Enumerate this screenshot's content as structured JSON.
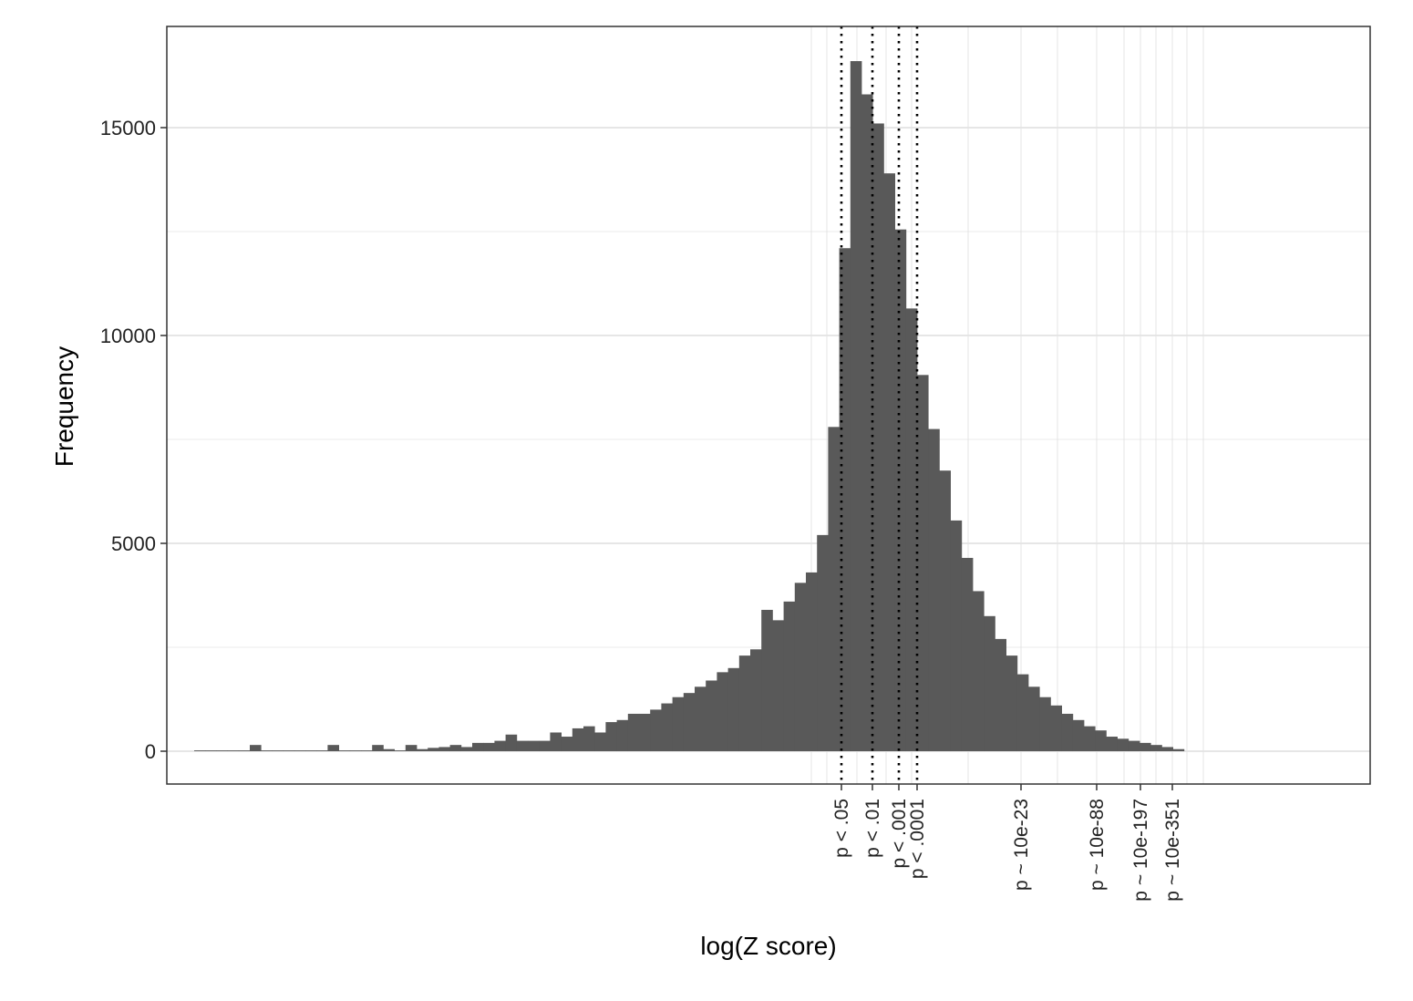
{
  "chart_data": {
    "type": "bar",
    "subtype": "histogram",
    "xlabel": "log(Z score)",
    "ylabel": "Frequency",
    "x_scale": "log",
    "ylim": [
      -800,
      17500
    ],
    "y_ticks": [
      0,
      5000,
      10000,
      15000
    ],
    "y_tick_labels": [
      "0",
      "5000",
      "10000",
      "15000"
    ],
    "grid": true,
    "bar_color": "#595959",
    "values": [
      20,
      20,
      20,
      20,
      20,
      150,
      20,
      20,
      20,
      20,
      20,
      20,
      150,
      20,
      20,
      20,
      150,
      50,
      20,
      150,
      50,
      80,
      100,
      150,
      100,
      200,
      200,
      250,
      400,
      250,
      250,
      250,
      450,
      350,
      550,
      600,
      450,
      700,
      750,
      900,
      900,
      1000,
      1150,
      1300,
      1400,
      1550,
      1700,
      1900,
      2000,
      2300,
      2450,
      3400,
      3150,
      3600,
      4050,
      4300,
      5200,
      7800,
      12100,
      16600,
      15800,
      15100,
      13900,
      12550,
      10650,
      9050,
      7750,
      6750,
      5550,
      4650,
      3850,
      3250,
      2700,
      2300,
      1850,
      1550,
      1300,
      1100,
      900,
      750,
      600,
      500,
      350,
      300,
      250,
      200,
      150,
      100,
      50
    ],
    "threshold_lines": [
      "p < .05",
      "p < .01",
      "p < .001",
      "p < .0001"
    ],
    "x_tick_labels": [
      "p < .05",
      "p < .01",
      "p < .001",
      "p < .0001",
      "p ~ 10e-23",
      "p ~ 10e-88",
      "p ~ 10e-197",
      "p ~ 10e-351"
    ]
  }
}
